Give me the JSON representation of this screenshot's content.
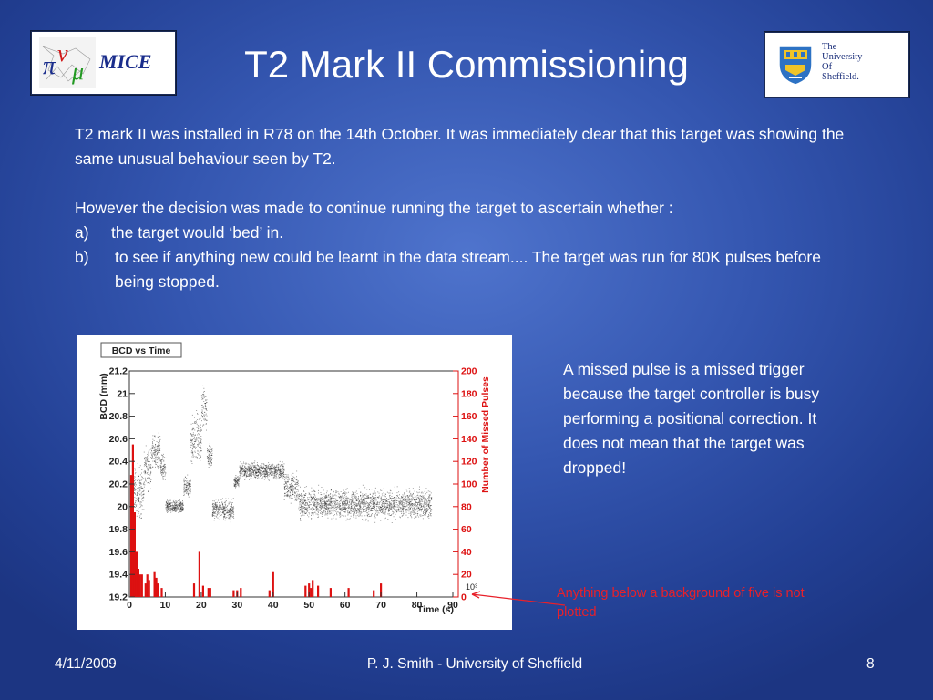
{
  "logos": {
    "mice_text": "MICE",
    "sheffield_lines": [
      "The",
      "University",
      "Of",
      "Sheffield."
    ]
  },
  "title": "T2 Mark II Commissioning",
  "paragraphs": {
    "p1": "T2 mark II was installed in R78 on the 14th October. It was immediately clear that this target was showing the same unusual behaviour seen by T2.",
    "p2": "However the decision was made to continue running the target to ascertain whether :",
    "items": [
      {
        "marker": "a)",
        "text": "the target would ‘bed’ in."
      },
      {
        "marker": "b)",
        "text": "to see if anything new could be learnt in the data stream.... The target was run for 80K pulses before being stopped."
      }
    ]
  },
  "note": "A missed pulse is a missed trigger because the target controller is busy performing a positional correction. It does not mean that the target was dropped!",
  "annotation": "Anything below a background of five is not plotted",
  "footer": {
    "date": "4/11/2009",
    "author": "P. J. Smith - University of Sheffield",
    "page": "8"
  },
  "chart_data": {
    "type": "scatter",
    "title": "BCD vs Time",
    "xlabel": "Time (s)",
    "x_multiplier": "10³",
    "ylabel": "BCD (mm)",
    "y2label": "Number of Missed Pulses",
    "xlim": [
      0,
      90
    ],
    "ylim": [
      19.2,
      21.2
    ],
    "y2lim": [
      0,
      200
    ],
    "x_ticks": [
      0,
      10,
      20,
      30,
      40,
      50,
      60,
      70,
      80,
      90
    ],
    "y_ticks": [
      19.2,
      19.4,
      19.6,
      19.8,
      20,
      20.2,
      20.4,
      20.6,
      20.8,
      21,
      21.2
    ],
    "y2_ticks": [
      0,
      20,
      40,
      60,
      80,
      100,
      120,
      140,
      160,
      180,
      200
    ],
    "scatter_color": "#222222",
    "bar_color": "#dd1111",
    "scatter_bands": [
      {
        "x": [
          0.5,
          4
        ],
        "y": [
          19.8,
          20.45
        ]
      },
      {
        "x": [
          4,
          6
        ],
        "y": [
          20.1,
          20.6
        ]
      },
      {
        "x": [
          6,
          8.5
        ],
        "y": [
          20.3,
          20.7
        ]
      },
      {
        "x": [
          8.5,
          10
        ],
        "y": [
          20.2,
          20.5
        ]
      },
      {
        "x": [
          10,
          15
        ],
        "y": [
          19.92,
          20.08
        ]
      },
      {
        "x": [
          15,
          17
        ],
        "y": [
          20.05,
          20.3
        ]
      },
      {
        "x": [
          17,
          20
        ],
        "y": [
          20.3,
          20.9
        ]
      },
      {
        "x": [
          20,
          21.5
        ],
        "y": [
          20.6,
          21.15
        ]
      },
      {
        "x": [
          21.5,
          23
        ],
        "y": [
          20.3,
          20.6
        ]
      },
      {
        "x": [
          23,
          29
        ],
        "y": [
          19.85,
          20.1
        ]
      },
      {
        "x": [
          29,
          30.5
        ],
        "y": [
          20.15,
          20.3
        ]
      },
      {
        "x": [
          30.5,
          43
        ],
        "y": [
          20.22,
          20.42
        ]
      },
      {
        "x": [
          43,
          47
        ],
        "y": [
          20.0,
          20.35
        ]
      },
      {
        "x": [
          47,
          84
        ],
        "y": [
          19.85,
          20.2
        ]
      }
    ],
    "missed_pulses": {
      "x": [
        0.5,
        1,
        1.5,
        2,
        2.5,
        3,
        3.5,
        4.5,
        5,
        5.5,
        7,
        7.5,
        8,
        9,
        18,
        19.5,
        20.5,
        22,
        22.5,
        29,
        30,
        31,
        39,
        40,
        49,
        50,
        50.5,
        51,
        52.5,
        56,
        61,
        68,
        70
      ],
      "values": [
        108,
        135,
        75,
        40,
        25,
        20,
        20,
        12,
        20,
        15,
        22,
        17,
        12,
        8,
        12,
        40,
        10,
        8,
        8,
        6,
        6,
        8,
        6,
        22,
        10,
        12,
        8,
        15,
        10,
        8,
        8,
        6,
        12
      ]
    }
  }
}
